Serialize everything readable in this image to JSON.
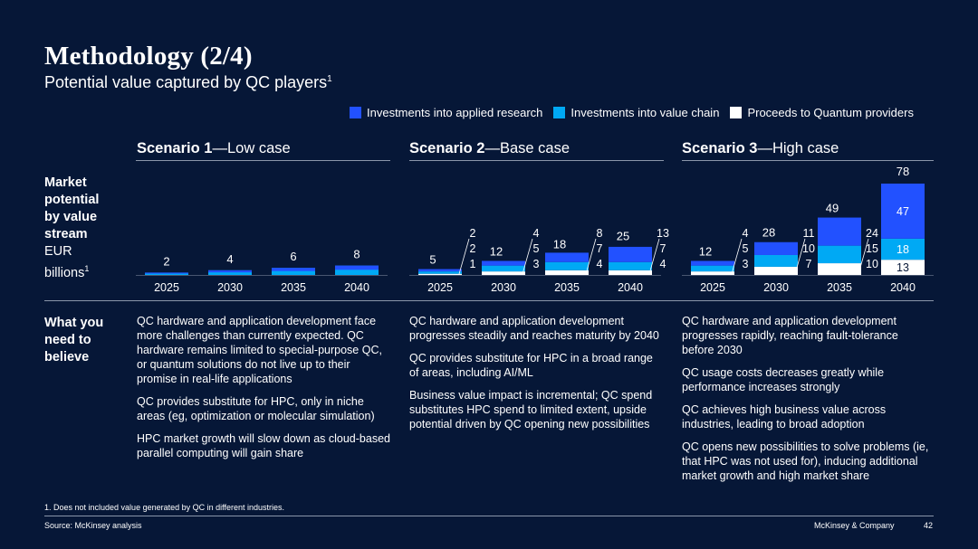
{
  "header": {
    "title": "Methodology (2/4)",
    "subtitle": "Potential value captured by QC players",
    "subtitle_sup": "1"
  },
  "legend": [
    {
      "label": "Investments into applied research",
      "color": "#2251ff"
    },
    {
      "label": "Investments into value chain",
      "color": "#00a9f4"
    },
    {
      "label": "Proceeds to Quantum providers",
      "color": "#ffffff"
    }
  ],
  "scenarios": [
    {
      "name": "Scenario 1",
      "case": "Low case"
    },
    {
      "name": "Scenario 2",
      "case": "Base case"
    },
    {
      "name": "Scenario 3",
      "case": "High case"
    }
  ],
  "row_labels": {
    "market_line1": "Market",
    "market_line2": "potential",
    "market_line3": "by value",
    "market_line4": "stream",
    "market_unit1": "EUR",
    "market_unit2": "billions",
    "market_sup": "1",
    "believe_line1": "What you",
    "believe_line2": "need to",
    "believe_line3": "believe"
  },
  "beliefs": [
    [
      "QC hardware and application development face more challenges than currently expected. QC hardware remains limited to special-purpose QC, or quantum solutions do not live up to their promise in real-life applications",
      "QC provides substitute for HPC, only in niche areas (eg, optimization or molecular simulation)",
      "HPC market growth will slow down as cloud-based parallel computing will gain share"
    ],
    [
      "QC hardware and application development progresses steadily and reaches maturity by 2040",
      "QC provides substitute for HPC in a broad range of areas, including AI/ML",
      "Business value impact is incremental; QC spend substitutes HPC spend to limited extent, upside potential driven by QC opening new possibilities"
    ],
    [
      "QC hardware and application development progresses rapidly, reaching fault-tolerance before 2030",
      "QC usage costs decreases greatly while performance increases strongly",
      "QC achieves high business value across industries, leading to broad adoption",
      "QC opens new possibilities to solve problems (ie, that HPC was not used for), inducing additional market growth and high market share"
    ]
  ],
  "chart_data": [
    {
      "type": "bar",
      "title": "Scenario 1—Low case",
      "categories": [
        "2025",
        "2030",
        "2035",
        "2040"
      ],
      "totals": [
        2,
        4,
        6,
        8
      ],
      "series": []
    },
    {
      "type": "bar",
      "title": "Scenario 2—Base case",
      "categories": [
        "2025",
        "2030",
        "2035",
        "2040"
      ],
      "totals": [
        5,
        12,
        18,
        25
      ],
      "series": [
        {
          "name": "Investments into applied research",
          "values": [
            2,
            4,
            8,
            13
          ]
        },
        {
          "name": "Investments into value chain",
          "values": [
            2,
            5,
            7,
            7
          ]
        },
        {
          "name": "Proceeds to Quantum providers",
          "values": [
            1,
            3,
            4,
            4
          ]
        }
      ]
    },
    {
      "type": "bar",
      "title": "Scenario 3—High case",
      "categories": [
        "2025",
        "2030",
        "2035",
        "2040"
      ],
      "totals": [
        12,
        28,
        49,
        78
      ],
      "series": [
        {
          "name": "Investments into applied research",
          "values": [
            4,
            11,
            24,
            47
          ]
        },
        {
          "name": "Investments into value chain",
          "values": [
            5,
            10,
            15,
            18
          ]
        },
        {
          "name": "Proceeds to Quantum providers",
          "values": [
            3,
            7,
            10,
            13
          ]
        }
      ]
    }
  ],
  "footer": {
    "footnote": "1. Does not included value generated by QC in different industries.",
    "source": "Source: McKinsey analysis",
    "company": "McKinsey & Company",
    "page": "42"
  }
}
